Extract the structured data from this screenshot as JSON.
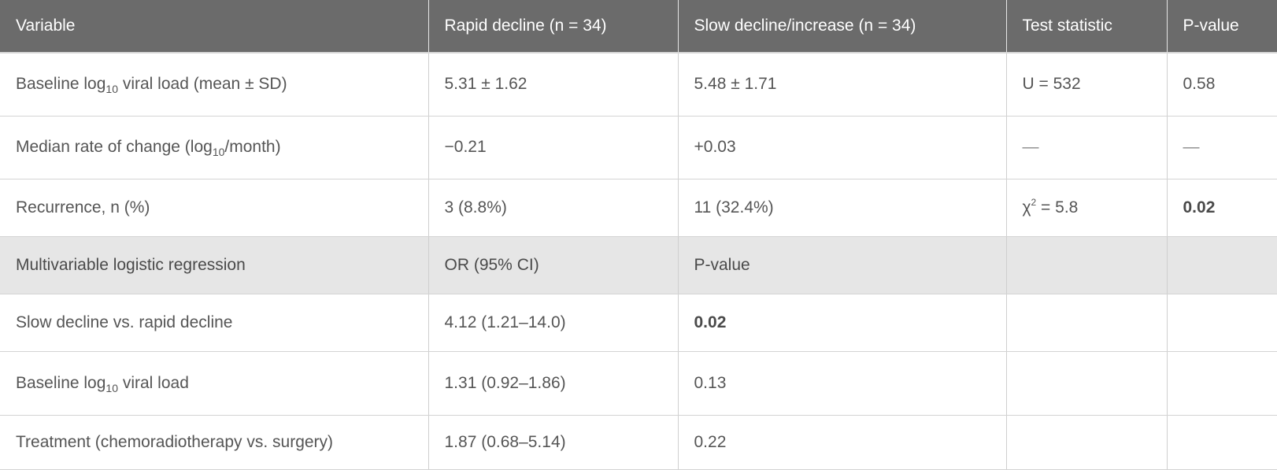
{
  "header": {
    "col1": "Variable",
    "col2": "Rapid decline (n = 34)",
    "col3": "Slow decline/increase (n = 34)",
    "col4": "Test statistic",
    "col5": "P-value"
  },
  "rows": {
    "baseline": {
      "label_pre": "Baseline log",
      "label_sub": "10",
      "label_post": " viral load (mean ± SD)",
      "rapid": "5.31 ± 1.62",
      "slow": "5.48 ± 1.71",
      "stat": "U = 532",
      "p": "0.58"
    },
    "median": {
      "label_pre": "Median rate of change (log",
      "label_sub": "10",
      "label_post": "/month)",
      "rapid": "−0.21",
      "slow": "+0.03",
      "stat": "—",
      "p": "—"
    },
    "recurrence": {
      "label": "Recurrence, n (%)",
      "rapid": "3 (8.8%)",
      "slow": "11 (32.4%)",
      "stat_pre": "χ",
      "stat_sup": "2",
      "stat_post": " = 5.8",
      "p": "0.02"
    },
    "section": {
      "label": "Multivariable logistic regression",
      "col2": "OR (95% CI)",
      "col3": "P-value"
    },
    "slow_vs_rapid": {
      "label": "Slow decline vs. rapid decline",
      "or": "4.12 (1.21–14.0)",
      "p": "0.02"
    },
    "baseline_log": {
      "label_pre": "Baseline log",
      "label_sub": "10",
      "label_post": " viral load",
      "or": "1.31 (0.92–1.86)",
      "p": "0.13"
    },
    "treatment": {
      "label": "Treatment (chemoradiotherapy vs. surgery)",
      "or": "1.87 (0.68–5.14)",
      "p": "0.22"
    }
  }
}
